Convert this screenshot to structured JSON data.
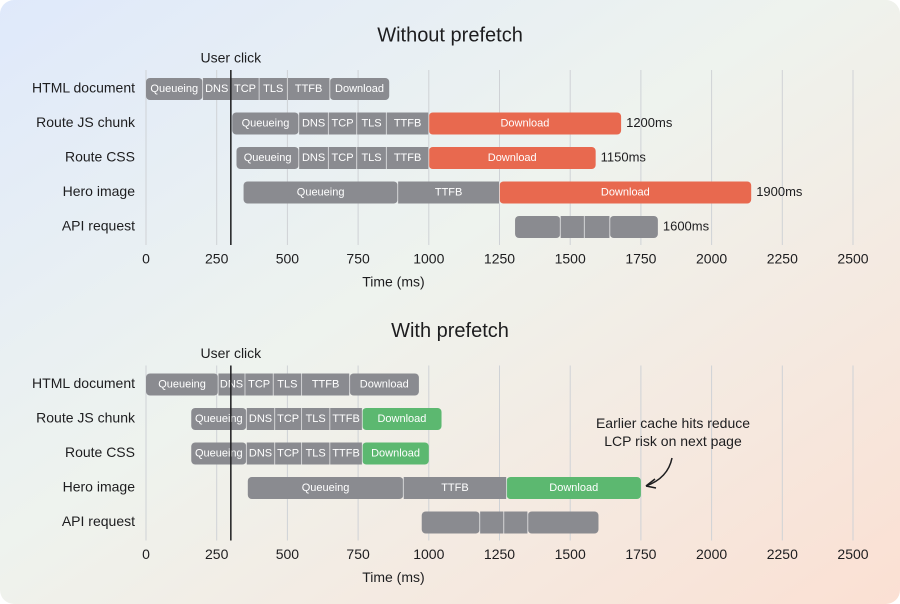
{
  "chart_data": [
    {
      "type": "gantt",
      "title": "Without prefetch",
      "xlabel": "Time (ms)",
      "xlim": [
        0,
        2500
      ],
      "xticks": [
        0,
        250,
        500,
        750,
        1000,
        1250,
        1500,
        1750,
        2000,
        2250,
        2500
      ],
      "grid": true,
      "marker": {
        "label": "User click",
        "value": 300
      },
      "rows": [
        {
          "name": "HTML document",
          "segments": [
            {
              "label": "Queueing",
              "start": 0,
              "end": 200,
              "color": "#8a8b90"
            },
            {
              "label": "DNS",
              "start": 200,
              "end": 300,
              "color": "#8a8b90"
            },
            {
              "label": "TCP",
              "start": 300,
              "end": 400,
              "color": "#8a8b90"
            },
            {
              "label": "TLS",
              "start": 400,
              "end": 500,
              "color": "#8a8b90"
            },
            {
              "label": "TTFB",
              "start": 500,
              "end": 650,
              "color": "#8a8b90"
            },
            {
              "label": "Download",
              "start": 650,
              "end": 860,
              "color": "#8a8b90"
            }
          ]
        },
        {
          "name": "Route JS chunk",
          "duration_label": "1200ms",
          "segments": [
            {
              "label": "Queueing",
              "start": 305,
              "end": 540,
              "color": "#8a8b90"
            },
            {
              "label": "DNS",
              "start": 540,
              "end": 645,
              "color": "#8a8b90"
            },
            {
              "label": "TCP",
              "start": 645,
              "end": 745,
              "color": "#8a8b90"
            },
            {
              "label": "TLS",
              "start": 745,
              "end": 850,
              "color": "#8a8b90"
            },
            {
              "label": "TTFB",
              "start": 850,
              "end": 1000,
              "color": "#8a8b90"
            },
            {
              "label": "Download",
              "start": 1000,
              "end": 1680,
              "color": "#e8694f"
            }
          ]
        },
        {
          "name": "Route CSS",
          "duration_label": "1150ms",
          "segments": [
            {
              "label": "Queueing",
              "start": 320,
              "end": 540,
              "color": "#8a8b90"
            },
            {
              "label": "DNS",
              "start": 540,
              "end": 645,
              "color": "#8a8b90"
            },
            {
              "label": "TCP",
              "start": 645,
              "end": 745,
              "color": "#8a8b90"
            },
            {
              "label": "TLS",
              "start": 745,
              "end": 850,
              "color": "#8a8b90"
            },
            {
              "label": "TTFB",
              "start": 850,
              "end": 1000,
              "color": "#8a8b90"
            },
            {
              "label": "Download",
              "start": 1000,
              "end": 1590,
              "color": "#e8694f"
            }
          ]
        },
        {
          "name": "Hero image",
          "duration_label": "1900ms",
          "segments": [
            {
              "label": "Queueing",
              "start": 345,
              "end": 890,
              "color": "#8a8b90"
            },
            {
              "label": "TTFB",
              "start": 890,
              "end": 1250,
              "color": "#8a8b90"
            },
            {
              "label": "Download",
              "start": 1250,
              "end": 2140,
              "color": "#e8694f"
            }
          ]
        },
        {
          "name": "API request",
          "duration_label": "1600ms",
          "segments": [
            {
              "start": 1305,
              "end": 1465,
              "color": "#8a8b90"
            },
            {
              "start": 1465,
              "end": 1550,
              "color": "#8a8b90"
            },
            {
              "start": 1550,
              "end": 1640,
              "color": "#8a8b90"
            },
            {
              "start": 1640,
              "end": 1810,
              "color": "#8a8b90"
            }
          ]
        }
      ]
    },
    {
      "type": "gantt",
      "title": "With prefetch",
      "xlabel": "Time (ms)",
      "xlim": [
        0,
        2500
      ],
      "xticks": [
        0,
        250,
        500,
        750,
        1000,
        1250,
        1500,
        1750,
        2000,
        2250,
        2500
      ],
      "grid": true,
      "marker": {
        "label": "User click",
        "value": 300
      },
      "annotation": [
        "Earlier cache hits reduce",
        "LCP risk on next page"
      ],
      "rows": [
        {
          "name": "HTML document",
          "segments": [
            {
              "label": "Queueing",
              "start": 0,
              "end": 255,
              "color": "#8a8b90"
            },
            {
              "label": "DNS",
              "start": 255,
              "end": 350,
              "color": "#8a8b90"
            },
            {
              "label": "TCP",
              "start": 350,
              "end": 450,
              "color": "#8a8b90"
            },
            {
              "label": "TLS",
              "start": 450,
              "end": 550,
              "color": "#8a8b90"
            },
            {
              "label": "TTFB",
              "start": 550,
              "end": 720,
              "color": "#8a8b90"
            },
            {
              "label": "Download",
              "start": 720,
              "end": 965,
              "color": "#8a8b90"
            }
          ]
        },
        {
          "name": "Route JS chunk",
          "segments": [
            {
              "label": "Queueing",
              "start": 160,
              "end": 355,
              "color": "#8a8b90"
            },
            {
              "label": "DNS",
              "start": 355,
              "end": 455,
              "color": "#8a8b90"
            },
            {
              "label": "TCP",
              "start": 455,
              "end": 550,
              "color": "#8a8b90"
            },
            {
              "label": "TLS",
              "start": 550,
              "end": 650,
              "color": "#8a8b90"
            },
            {
              "label": "TTFB",
              "start": 650,
              "end": 765,
              "color": "#8a8b90"
            },
            {
              "label": "Download",
              "start": 765,
              "end": 1045,
              "color": "#5cb870"
            }
          ]
        },
        {
          "name": "Route CSS",
          "segments": [
            {
              "label": "Queueing",
              "start": 160,
              "end": 355,
              "color": "#8a8b90"
            },
            {
              "label": "DNS",
              "start": 355,
              "end": 455,
              "color": "#8a8b90"
            },
            {
              "label": "TCP",
              "start": 455,
              "end": 550,
              "color": "#8a8b90"
            },
            {
              "label": "TLS",
              "start": 550,
              "end": 650,
              "color": "#8a8b90"
            },
            {
              "label": "TTFB",
              "start": 650,
              "end": 765,
              "color": "#8a8b90"
            },
            {
              "label": "Download",
              "start": 765,
              "end": 1000,
              "color": "#5cb870"
            }
          ]
        },
        {
          "name": "Hero image",
          "segments": [
            {
              "label": "Queueing",
              "start": 360,
              "end": 910,
              "color": "#8a8b90"
            },
            {
              "label": "TTFB",
              "start": 910,
              "end": 1275,
              "color": "#8a8b90"
            },
            {
              "label": "Download",
              "start": 1275,
              "end": 1750,
              "color": "#5cb870"
            }
          ]
        },
        {
          "name": "API request",
          "segments": [
            {
              "start": 975,
              "end": 1180,
              "color": "#8a8b90"
            },
            {
              "start": 1180,
              "end": 1265,
              "color": "#8a8b90"
            },
            {
              "start": 1265,
              "end": 1350,
              "color": "#8a8b90"
            },
            {
              "start": 1350,
              "end": 1600,
              "color": "#8a8b90"
            }
          ]
        }
      ]
    }
  ]
}
